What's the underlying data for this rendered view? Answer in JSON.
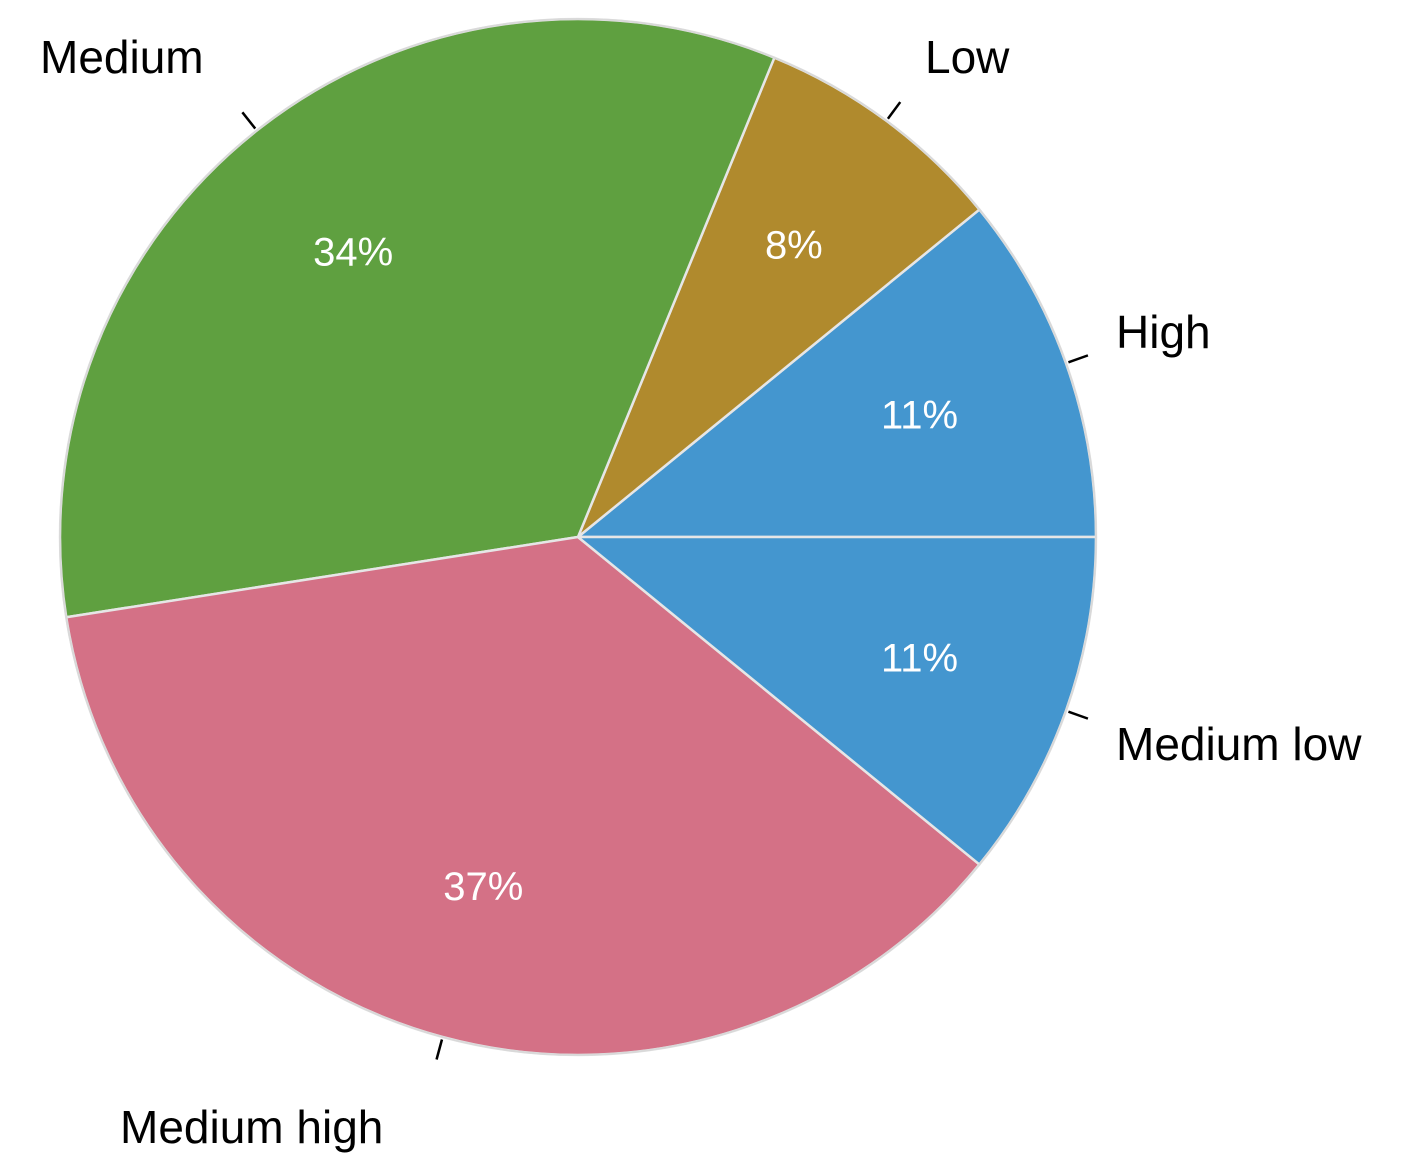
{
  "chart_data": {
    "type": "pie",
    "start_angle_deg": 0,
    "direction": "counterclockwise",
    "slices": [
      {
        "label": "High",
        "value": 11,
        "value_label": "11%",
        "color": "#4496cf"
      },
      {
        "label": "Low",
        "value": 8,
        "value_label": "8%",
        "color": "#b08a2d"
      },
      {
        "label": "Medium",
        "value": 34,
        "value_label": "34%",
        "color": "#5fa040"
      },
      {
        "label": "Medium high",
        "value": 37,
        "value_label": "37%",
        "color": "#d47186"
      },
      {
        "label": "Medium low",
        "value": 11,
        "value_label": "11%",
        "color": "#4496cf"
      }
    ],
    "title": "",
    "legend": "none"
  }
}
